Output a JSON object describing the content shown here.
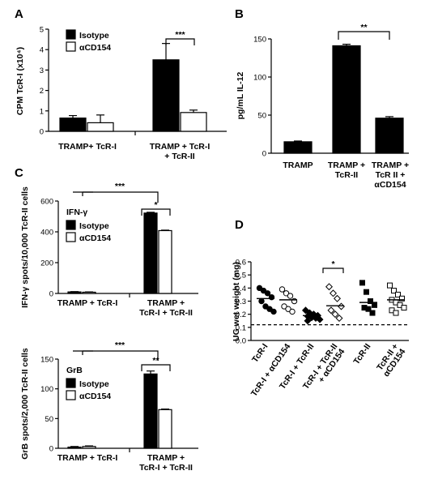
{
  "chart_data": [
    {
      "panel": "A",
      "type": "bar",
      "ylabel": "CPM TcR-I (x10⁴)",
      "ylim": [
        0,
        5
      ],
      "yticks": [
        0,
        1,
        2,
        3,
        4,
        5
      ],
      "categories": [
        "TRAMP+ TcR-I",
        "TRAMP + TcR-I + TcR-II"
      ],
      "series": [
        {
          "name": "Isotype",
          "values": [
            0.65,
            3.5
          ],
          "errors": [
            0.12,
            0.8
          ]
        },
        {
          "name": "αCD154",
          "values": [
            0.42,
            0.92
          ],
          "errors": [
            0.38,
            0.12
          ]
        }
      ],
      "significance": [
        "***"
      ],
      "legend": "top-left"
    },
    {
      "panel": "B",
      "type": "bar",
      "ylabel": "pg/mL IL-12",
      "ylim": [
        0,
        150
      ],
      "yticks": [
        0,
        50,
        100,
        150
      ],
      "categories": [
        "TRAMP",
        "TRAMP + TcR-II",
        "TRAMP + TcR II + αCD154"
      ],
      "values": [
        15,
        141,
        46
      ],
      "errors": [
        1,
        2,
        2
      ],
      "significance": [
        "**"
      ]
    },
    {
      "panel": "C",
      "type": "bar",
      "subtitle": "IFN-γ",
      "ylabel": "IFN-γ spots/10,000 TcR-II cells",
      "ylim": [
        0,
        600
      ],
      "yticks": [
        0,
        200,
        400,
        600
      ],
      "categories": [
        "TRAMP + TcR-I",
        "TRAMP + TcR-I + TcR-II"
      ],
      "series": [
        {
          "name": "Isotype",
          "values": [
            10,
            522
          ],
          "errors": [
            2,
            5
          ]
        },
        {
          "name": "αCD154",
          "values": [
            8,
            408
          ],
          "errors": [
            2,
            3
          ]
        }
      ],
      "significance": [
        "***",
        "*"
      ],
      "legend": "top-left"
    },
    {
      "panel": "",
      "type": "bar",
      "subtitle": "GrB",
      "ylabel": "GrB spots/2,000 TcR-II cells",
      "ylim": [
        0,
        150
      ],
      "yticks": [
        0,
        50,
        100,
        150
      ],
      "categories": [
        "TRAMP + TcR-I",
        "TRAMP + TcR-I + TcR-II"
      ],
      "series": [
        {
          "name": "Isotype",
          "values": [
            2,
            125
          ],
          "errors": [
            1,
            5
          ]
        },
        {
          "name": "αCD154",
          "values": [
            3,
            65
          ],
          "errors": [
            1,
            1
          ]
        }
      ],
      "significance": [
        "***",
        "**"
      ],
      "legend": "top-left"
    },
    {
      "panel": "D",
      "type": "scatter",
      "ylabel": "UG wet weight (mg)",
      "ylim": [
        0,
        0.6
      ],
      "yticks": [
        "0.0",
        "0.1",
        "0.2",
        "0.3",
        "0.4",
        "0.5",
        "0.6"
      ],
      "reference_line": 0.12,
      "categories": [
        "TcR-I",
        "TcR-I + αCD154",
        "TcR-I + TcR-II",
        "TcR-I + TcR-II + αCD154",
        "TcR-II",
        "TcR-II + αCD154"
      ],
      "means": [
        0.32,
        0.31,
        0.19,
        0.265,
        0.29,
        0.31
      ],
      "points": [
        [
          0.4,
          0.38,
          0.36,
          0.33,
          0.3,
          0.26,
          0.24,
          0.22
        ],
        [
          0.39,
          0.36,
          0.34,
          0.3,
          0.26,
          0.24,
          0.22
        ],
        [
          0.23,
          0.21,
          0.2,
          0.19,
          0.185,
          0.175,
          0.17,
          0.16,
          0.15
        ],
        [
          0.41,
          0.36,
          0.32,
          0.26,
          0.23,
          0.2,
          0.17
        ],
        [
          0.44,
          0.37,
          0.3,
          0.27,
          0.25,
          0.24,
          0.21
        ],
        [
          0.42,
          0.38,
          0.35,
          0.32,
          0.31,
          0.29,
          0.27,
          0.25,
          0.23,
          0.21
        ]
      ],
      "markers": [
        "filled-circle",
        "open-circle",
        "filled-diamond",
        "open-diamond",
        "filled-square",
        "open-square"
      ],
      "significance": [
        "*"
      ]
    }
  ]
}
